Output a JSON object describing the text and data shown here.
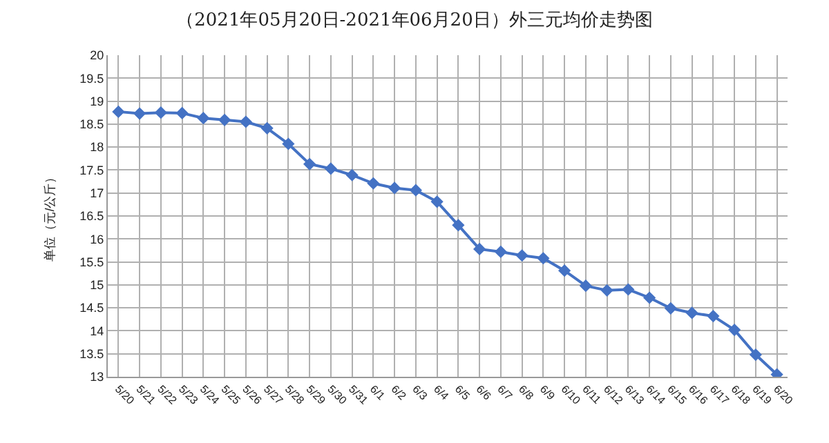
{
  "chart_data": {
    "type": "line",
    "title": "（2021年05月20日-2021年06月20日）外三元均价走势图",
    "ylabel": "单位（元/公斤）",
    "categories": [
      "5/20",
      "5/21",
      "5/22",
      "5/23",
      "5/24",
      "5/25",
      "5/26",
      "5/27",
      "5/28",
      "5/29",
      "5/30",
      "5/31",
      "6/1",
      "6/2",
      "6/3",
      "6/4",
      "6/5",
      "6/6",
      "6/7",
      "6/8",
      "6/9",
      "6/10",
      "6/11",
      "6/12",
      "6/13",
      "6/14",
      "6/15",
      "6/16",
      "6/17",
      "6/18",
      "6/19",
      "6/20"
    ],
    "series": [
      {
        "color": "#4472c4",
        "values": [
          18.77,
          18.73,
          18.75,
          18.74,
          18.63,
          18.59,
          18.55,
          18.41,
          18.07,
          17.63,
          17.53,
          17.39,
          17.21,
          17.11,
          17.06,
          16.81,
          16.3,
          15.78,
          15.72,
          15.64,
          15.58,
          15.31,
          14.98,
          14.88,
          14.9,
          14.72,
          14.49,
          14.39,
          14.32,
          14.02,
          13.48,
          13.05
        ]
      }
    ],
    "ylim": [
      13,
      20
    ],
    "yticks": [
      13,
      13.5,
      14,
      14.5,
      15,
      15.5,
      16,
      16.5,
      17,
      17.5,
      18,
      18.5,
      19,
      19.5,
      20
    ],
    "grid": true,
    "marker": "diamond",
    "line_style": "solid"
  }
}
